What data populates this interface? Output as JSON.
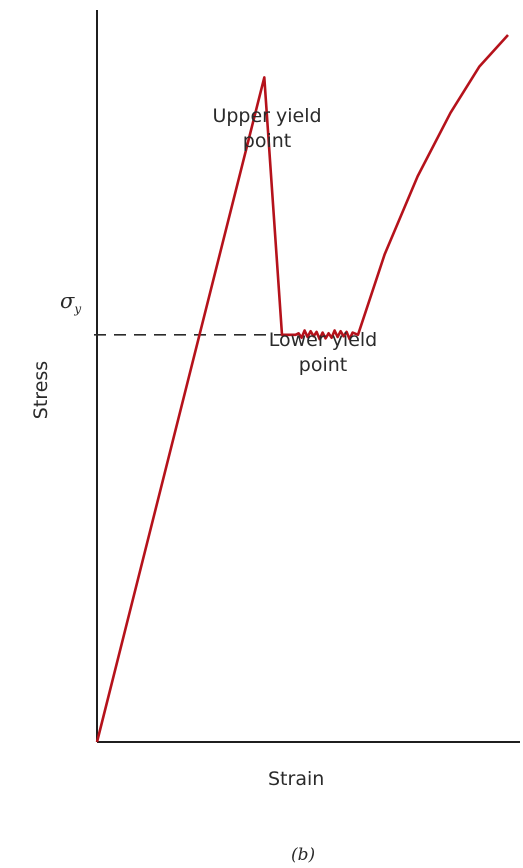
{
  "chart_data": {
    "type": "line",
    "xlabel": "Strain",
    "ylabel": "Stress",
    "caption": "(b)",
    "yield_stress_label": {
      "symbol": "σ",
      "subscript": "y"
    },
    "annotations": [
      {
        "id": "upper",
        "lines": [
          "Upper yield",
          "point"
        ]
      },
      {
        "id": "lower",
        "lines": [
          "Lower yield",
          "point"
        ]
      }
    ],
    "axis_ticks_shown": false,
    "grid": false,
    "series": [
      {
        "curve_points": [
          [
            0,
            0
          ],
          [
            0.407,
            0.94
          ],
          [
            0.45,
            0.576
          ],
          [
            0.635,
            0.576
          ],
          [
            0.7,
            0.69
          ],
          [
            0.78,
            0.8
          ],
          [
            0.86,
            0.89
          ],
          [
            0.93,
            0.955
          ],
          [
            1.0,
            1.0
          ]
        ],
        "plateau_noise": true
      }
    ],
    "yield_reference": {
      "value": 0.576,
      "style": "dashed",
      "from_x": 0,
      "to_x": 0.45
    },
    "xlim": [
      0,
      1
    ],
    "ylim": [
      0,
      1
    ],
    "colors": {
      "curve": "#b5121b",
      "axes": "#1f1f1f",
      "dashed_line": "#2a2a2a"
    }
  }
}
